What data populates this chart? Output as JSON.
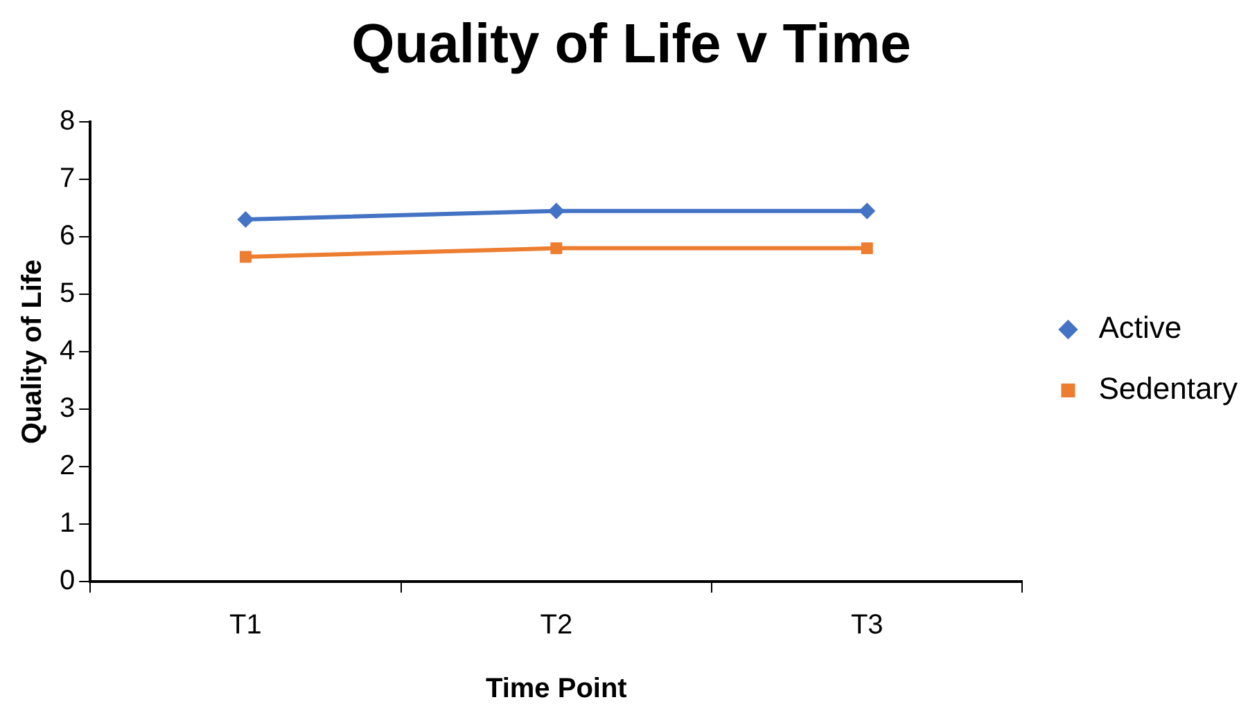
{
  "chart_data": {
    "type": "line",
    "title": "Quality of Life v Time",
    "xlabel": "Time Point",
    "ylabel": "Quality of Life",
    "categories": [
      "T1",
      "T2",
      "T3"
    ],
    "series": [
      {
        "name": "Active",
        "color": "#4472c4",
        "values": [
          6.3,
          6.45,
          6.45
        ],
        "marker": "diamond"
      },
      {
        "name": "Sedentary",
        "color": "#ed7d31",
        "values": [
          5.65,
          5.8,
          5.8
        ],
        "marker": "square"
      }
    ],
    "ylim": [
      0,
      8
    ],
    "yticks": [
      0,
      1,
      2,
      3,
      4,
      5,
      6,
      7,
      8
    ],
    "grid": false,
    "legend": "right"
  }
}
